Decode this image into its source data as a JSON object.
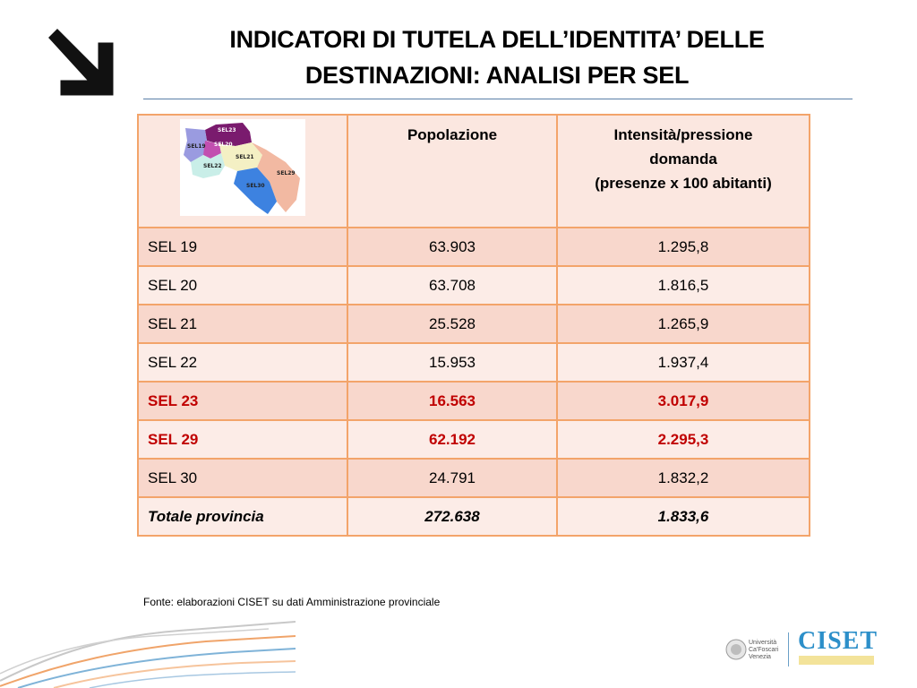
{
  "title_line1": "INDICATORI DI TUTELA DELL’IDENTITA’ DELLE",
  "title_line2": "DESTINAZIONI: ANALISI PER SEL",
  "table": {
    "headers": {
      "map_labels": [
        "SEL23",
        "SEL19",
        "SEL20",
        "SEL21",
        "SEL22",
        "SEL29",
        "SEL30"
      ],
      "col2": "Popolazione",
      "col3_line1": "Intensità/pressione",
      "col3_line2": "domanda",
      "col3_line3": "(presenze x 100 abitanti)"
    },
    "rows": [
      {
        "sel": "SEL 19",
        "popolazione": "63.903",
        "intensita": "1.295,8"
      },
      {
        "sel": "SEL 20",
        "popolazione": "63.708",
        "intensita": "1.816,5"
      },
      {
        "sel": "SEL 21",
        "popolazione": "25.528",
        "intensita": "1.265,9"
      },
      {
        "sel": "SEL 22",
        "popolazione": "15.953",
        "intensita": "1.937,4"
      },
      {
        "sel": "SEL 23",
        "popolazione": "16.563",
        "intensita": "3.017,9"
      },
      {
        "sel": "SEL 29",
        "popolazione": "62.192",
        "intensita": "2.295,3"
      },
      {
        "sel": "SEL 30",
        "popolazione": "24.791",
        "intensita": "1.832,2"
      }
    ],
    "total": {
      "sel": "Totale provincia",
      "popolazione": "272.638",
      "intensita": "1.833,6"
    },
    "highlight_color": "#c00000"
  },
  "source": "Fonte: elaborazioni CISET su dati Amministrazione provinciale",
  "footer": {
    "university_text": [
      "Università",
      "Ca'Foscari",
      "Venezia"
    ],
    "ciset_logo": "CISET"
  }
}
